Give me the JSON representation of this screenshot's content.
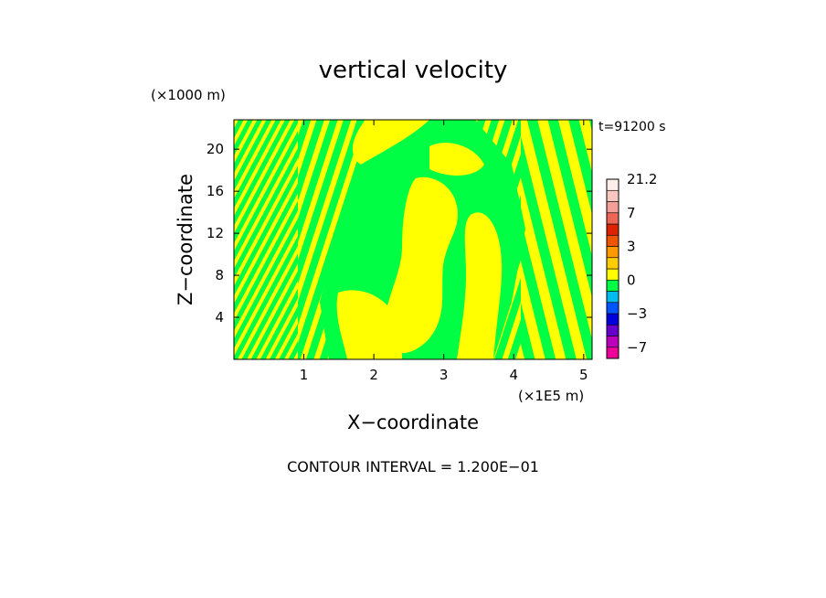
{
  "chart_data": {
    "type": "heatmap",
    "title": "vertical velocity",
    "xlabel": "X−coordinate",
    "ylabel": "Z−coordinate",
    "x_unit_label": "(×1E5 m)",
    "y_unit_label": "(×1000 m)",
    "time_label": "t=91200 s",
    "footer": "CONTOUR INTERVAL = 1.200E−01",
    "xlim": [
      0,
      5.12
    ],
    "ylim": [
      0,
      22.8
    ],
    "x_ticks": [
      1,
      2,
      3,
      4,
      5
    ],
    "y_ticks": [
      4,
      8,
      12,
      16,
      20
    ],
    "field": {
      "dominant_colors": [
        "#00ff44",
        "#ffff00"
      ],
      "description_values": "alternating positive (yellow, ~0..0.12) and negative (green, ~-0.12..0) vertical velocity bands"
    },
    "colorbar": {
      "labels": [
        "21.2",
        "7",
        "3",
        "0",
        "−3",
        "−7"
      ],
      "label_values": [
        21.2,
        7,
        3,
        0,
        -3,
        -7
      ],
      "levels": [
        {
          "color": "#ee0099",
          "lo": -12,
          "hi": -7
        },
        {
          "color": "#bb00bb",
          "lo": -7,
          "hi": -5
        },
        {
          "color": "#6600cc",
          "lo": -5,
          "hi": -4
        },
        {
          "color": "#0000dd",
          "lo": -4,
          "hi": -3
        },
        {
          "color": "#0055ff",
          "lo": -3,
          "hi": -2
        },
        {
          "color": "#00bbee",
          "lo": -2,
          "hi": -1
        },
        {
          "color": "#00ff44",
          "lo": -1,
          "hi": 0
        },
        {
          "color": "#ffff00",
          "lo": 0,
          "hi": 1
        },
        {
          "color": "#ffcc00",
          "lo": 1,
          "hi": 2
        },
        {
          "color": "#ff9900",
          "lo": 2,
          "hi": 3
        },
        {
          "color": "#ee5500",
          "lo": 3,
          "hi": 4
        },
        {
          "color": "#dd2200",
          "lo": 4,
          "hi": 5
        },
        {
          "color": "#ee6655",
          "lo": 5,
          "hi": 7
        },
        {
          "color": "#f4a098",
          "lo": 7,
          "hi": 11
        },
        {
          "color": "#f8c8c0",
          "lo": 11,
          "hi": 15
        },
        {
          "color": "#fdeeea",
          "lo": 15,
          "hi": 21.2
        }
      ]
    }
  }
}
